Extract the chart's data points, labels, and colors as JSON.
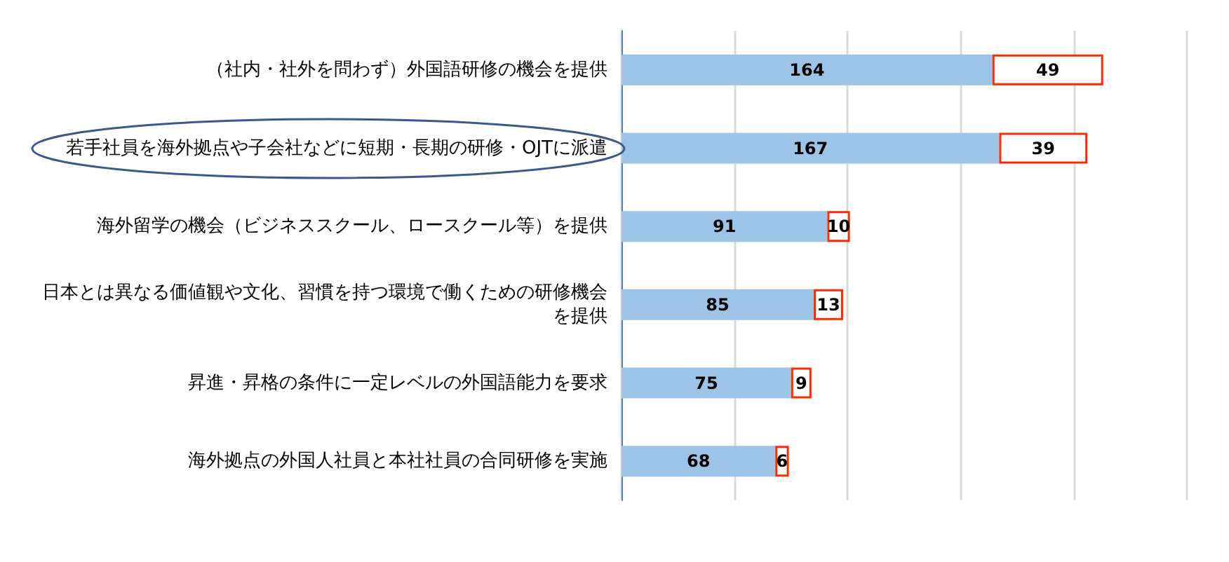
{
  "chart_data": {
    "type": "bar",
    "orientation": "horizontal",
    "stacked": true,
    "data_labels": true,
    "grid": "x",
    "tick_labels": "y",
    "categories": [
      "（社内・社外を問わず）外国語研修の機会を提供",
      "若手社員を海外拠点や子会社などに短期・長期の研修・OJTに派遣",
      "海外留学の機会（ビジネススクール、ロースクール等）を提供",
      "日本とは異なる価値観や文化、習慣を持つ環境で働くための研修機会を提供",
      "昇進・昇格の条件に一定レベルの外国語能力を要求",
      "海外拠点の外国人社員と本社社員の合同研修を実施"
    ],
    "xlim": [
      0,
      250
    ],
    "xticks": [
      0,
      50,
      100,
      150,
      200,
      250
    ],
    "series": [
      {
        "color": "#9dc3e6",
        "values": [
          164,
          167,
          91,
          85,
          75,
          68
        ]
      },
      {
        "color": "#ffffff",
        "values": [
          49,
          39,
          10,
          13,
          9,
          6
        ]
      }
    ]
  }
}
